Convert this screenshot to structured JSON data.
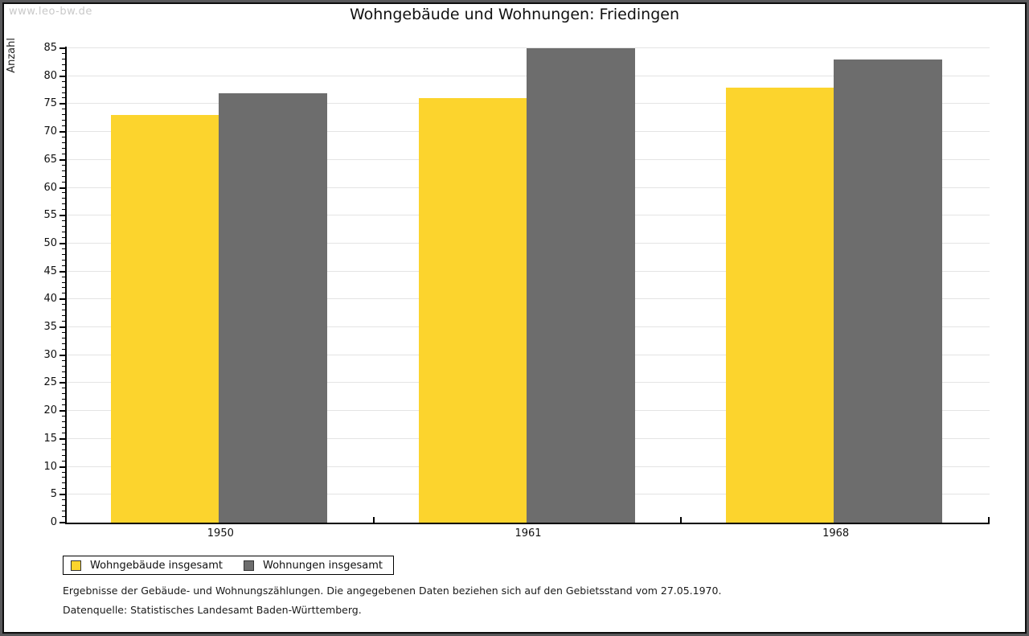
{
  "watermark": "www.leo-bw.de",
  "header": {
    "title": "Wohngebäude und Wohnungen: Friedingen"
  },
  "footnotes": [
    "Ergebnisse der Gebäude- und Wohnungszählungen. Die angegebenen Daten beziehen sich auf den Gebietsstand vom 27.05.1970.",
    "Datenquelle: Statistisches Landesamt Baden-Württemberg."
  ],
  "colors": {
    "series1": "#fcd42d",
    "series2": "#6d6d6d",
    "axis": "#000000",
    "gridline": "#e4e4e4",
    "watermark": "#c9c9c9",
    "frame_outer": "#58585a"
  },
  "chart_data": {
    "type": "bar",
    "title": "Wohngebäude und Wohnungen: Friedingen",
    "categories": [
      "1950",
      "1961",
      "1968"
    ],
    "series": [
      {
        "name": "Wohngebäude insgesamt",
        "color": "#fcd42d",
        "values": [
          73,
          76,
          78
        ]
      },
      {
        "name": "Wohnungen insgesamt",
        "color": "#6d6d6d",
        "values": [
          77,
          85,
          83
        ]
      }
    ],
    "xlabel": "",
    "ylabel": "Anzahl",
    "ylim": [
      0,
      85
    ],
    "ytick_step": 5,
    "yminor_step": 1,
    "grid": true,
    "legend_position": "bottom"
  }
}
